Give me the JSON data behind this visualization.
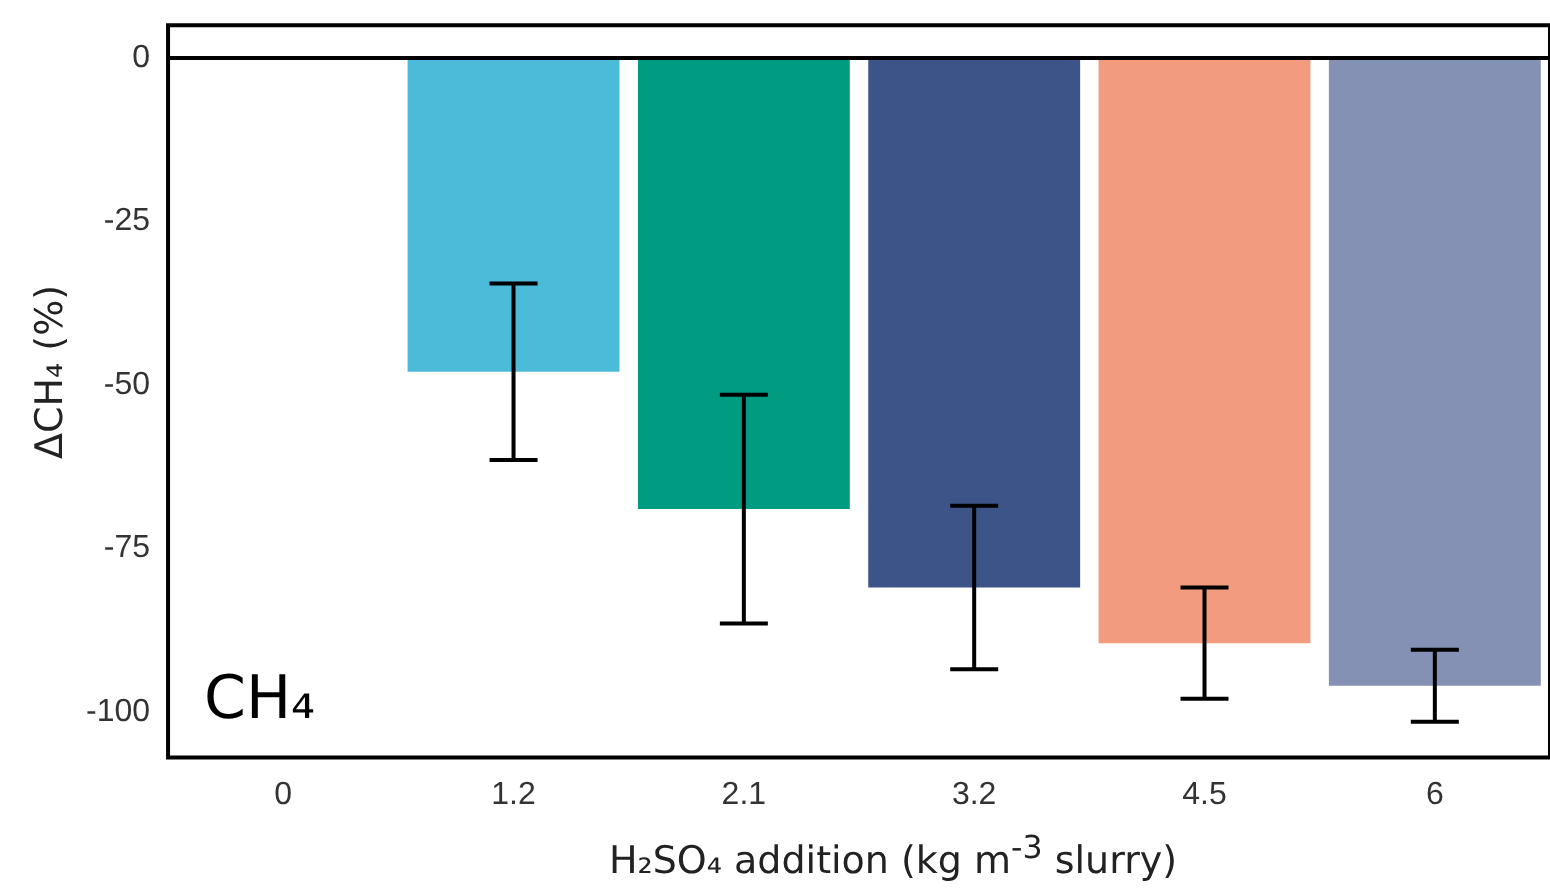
{
  "chart_data": {
    "type": "bar",
    "categories": [
      "0",
      "1.2",
      "2.1",
      "3.2",
      "4.5",
      "6"
    ],
    "values": [
      0,
      -48,
      -69,
      -81,
      -89.5,
      -96
    ],
    "colors": [
      "#4cbbd9",
      "#4cbbd9",
      "#009c82",
      "#3c5488",
      "#f39b7f",
      "#8491b4"
    ],
    "errors": [
      null,
      13.5,
      17.5,
      12.5,
      8.5,
      5.5
    ],
    "xlabel": "H₂SO₄ addition (kg m$^{-3}$ slurry)",
    "ylabel": "ΔCH₄ (%)",
    "ylim": [
      -107,
      5
    ],
    "yticks": [
      0,
      -25,
      -50,
      -75,
      -100
    ],
    "grid": false,
    "ref_lines": [
      {
        "axis": "y",
        "value": 0,
        "color": "#000000"
      }
    ],
    "annotations": [
      "CH₄"
    ]
  }
}
